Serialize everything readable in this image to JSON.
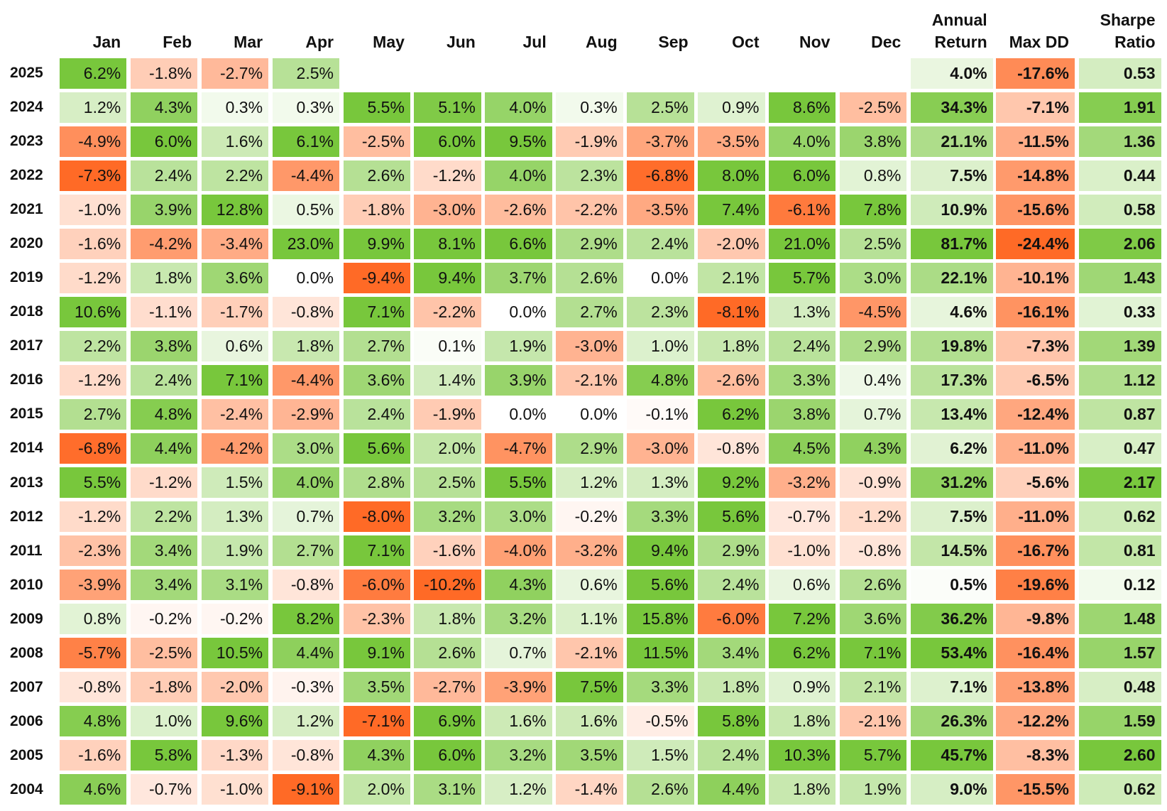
{
  "table": {
    "columns": [
      "Jan",
      "Feb",
      "Mar",
      "Apr",
      "May",
      "Jun",
      "Jul",
      "Aug",
      "Sep",
      "Oct",
      "Nov",
      "Dec",
      "Annual Return",
      "Max DD",
      "Sharpe Ratio"
    ],
    "colors": {
      "positive": "#78c73c",
      "negative": "#ff6a26"
    },
    "rows": [
      {
        "label": "2025",
        "cells": [
          "6.2%",
          "-1.8%",
          "-2.7%",
          "2.5%",
          null,
          null,
          null,
          null,
          null,
          null,
          null,
          null,
          "4.0%",
          "-17.6%",
          "0.53"
        ]
      },
      {
        "label": "2024",
        "cells": [
          "1.2%",
          "4.3%",
          "0.3%",
          "0.3%",
          "5.5%",
          "5.1%",
          "4.0%",
          "0.3%",
          "2.5%",
          "0.9%",
          "8.6%",
          "-2.5%",
          "34.3%",
          "-7.1%",
          "1.91"
        ]
      },
      {
        "label": "2023",
        "cells": [
          "-4.9%",
          "6.0%",
          "1.6%",
          "6.1%",
          "-2.5%",
          "6.0%",
          "9.5%",
          "-1.9%",
          "-3.7%",
          "-3.5%",
          "4.0%",
          "3.8%",
          "21.1%",
          "-11.5%",
          "1.36"
        ]
      },
      {
        "label": "2022",
        "cells": [
          "-7.3%",
          "2.4%",
          "2.2%",
          "-4.4%",
          "2.6%",
          "-1.2%",
          "4.0%",
          "2.3%",
          "-6.8%",
          "8.0%",
          "6.0%",
          "0.8%",
          "7.5%",
          "-14.8%",
          "0.44"
        ]
      },
      {
        "label": "2021",
        "cells": [
          "-1.0%",
          "3.9%",
          "12.8%",
          "0.5%",
          "-1.8%",
          "-3.0%",
          "-2.6%",
          "-2.2%",
          "-3.5%",
          "7.4%",
          "-6.1%",
          "7.8%",
          "10.9%",
          "-15.6%",
          "0.58"
        ]
      },
      {
        "label": "2020",
        "cells": [
          "-1.6%",
          "-4.2%",
          "-3.4%",
          "23.0%",
          "9.9%",
          "8.1%",
          "6.6%",
          "2.9%",
          "2.4%",
          "-2.0%",
          "21.0%",
          "2.5%",
          "81.7%",
          "-24.4%",
          "2.06"
        ]
      },
      {
        "label": "2019",
        "cells": [
          "-1.2%",
          "1.8%",
          "3.6%",
          "0.0%",
          "-9.4%",
          "9.4%",
          "3.7%",
          "2.6%",
          "0.0%",
          "2.1%",
          "5.7%",
          "3.0%",
          "22.1%",
          "-10.1%",
          "1.43"
        ]
      },
      {
        "label": "2018",
        "cells": [
          "10.6%",
          "-1.1%",
          "-1.7%",
          "-0.8%",
          "7.1%",
          "-2.2%",
          "0.0%",
          "2.7%",
          "2.3%",
          "-8.1%",
          "1.3%",
          "-4.5%",
          "4.6%",
          "-16.1%",
          "0.33"
        ]
      },
      {
        "label": "2017",
        "cells": [
          "2.2%",
          "3.8%",
          "0.6%",
          "1.8%",
          "2.7%",
          "0.1%",
          "1.9%",
          "-3.0%",
          "1.0%",
          "1.8%",
          "2.4%",
          "2.9%",
          "19.8%",
          "-7.3%",
          "1.39"
        ]
      },
      {
        "label": "2016",
        "cells": [
          "-1.2%",
          "2.4%",
          "7.1%",
          "-4.4%",
          "3.6%",
          "1.4%",
          "3.9%",
          "-2.1%",
          "4.8%",
          "-2.6%",
          "3.3%",
          "0.4%",
          "17.3%",
          "-6.5%",
          "1.12"
        ]
      },
      {
        "label": "2015",
        "cells": [
          "2.7%",
          "4.8%",
          "-2.4%",
          "-2.9%",
          "2.4%",
          "-1.9%",
          "0.0%",
          "0.0%",
          "-0.1%",
          "6.2%",
          "3.8%",
          "0.7%",
          "13.4%",
          "-12.4%",
          "0.87"
        ]
      },
      {
        "label": "2014",
        "cells": [
          "-6.8%",
          "4.4%",
          "-4.2%",
          "3.0%",
          "5.6%",
          "2.0%",
          "-4.7%",
          "2.9%",
          "-3.0%",
          "-0.8%",
          "4.5%",
          "4.3%",
          "6.2%",
          "-11.0%",
          "0.47"
        ]
      },
      {
        "label": "2013",
        "cells": [
          "5.5%",
          "-1.2%",
          "1.5%",
          "4.0%",
          "2.8%",
          "2.5%",
          "5.5%",
          "1.2%",
          "1.3%",
          "9.2%",
          "-3.2%",
          "-0.9%",
          "31.2%",
          "-5.6%",
          "2.17"
        ]
      },
      {
        "label": "2012",
        "cells": [
          "-1.2%",
          "2.2%",
          "1.3%",
          "0.7%",
          "-8.0%",
          "3.2%",
          "3.0%",
          "-0.2%",
          "3.3%",
          "5.6%",
          "-0.7%",
          "-1.2%",
          "7.5%",
          "-11.0%",
          "0.62"
        ]
      },
      {
        "label": "2011",
        "cells": [
          "-2.3%",
          "3.4%",
          "1.9%",
          "2.7%",
          "7.1%",
          "-1.6%",
          "-4.0%",
          "-3.2%",
          "9.4%",
          "2.9%",
          "-1.0%",
          "-0.8%",
          "14.5%",
          "-16.7%",
          "0.81"
        ]
      },
      {
        "label": "2010",
        "cells": [
          "-3.9%",
          "3.4%",
          "3.1%",
          "-0.8%",
          "-6.0%",
          "-10.2%",
          "4.3%",
          "0.6%",
          "5.6%",
          "2.4%",
          "0.6%",
          "2.6%",
          "0.5%",
          "-19.6%",
          "0.12"
        ]
      },
      {
        "label": "2009",
        "cells": [
          "0.8%",
          "-0.2%",
          "-0.2%",
          "8.2%",
          "-2.3%",
          "1.8%",
          "3.2%",
          "1.1%",
          "15.8%",
          "-6.0%",
          "7.2%",
          "3.6%",
          "36.2%",
          "-9.8%",
          "1.48"
        ]
      },
      {
        "label": "2008",
        "cells": [
          "-5.7%",
          "-2.5%",
          "10.5%",
          "4.4%",
          "9.1%",
          "2.6%",
          "0.7%",
          "-2.1%",
          "11.5%",
          "3.4%",
          "6.2%",
          "7.1%",
          "53.4%",
          "-16.4%",
          "1.57"
        ]
      },
      {
        "label": "2007",
        "cells": [
          "-0.8%",
          "-1.8%",
          "-2.0%",
          "-0.3%",
          "3.5%",
          "-2.7%",
          "-3.9%",
          "7.5%",
          "3.3%",
          "1.8%",
          "0.9%",
          "2.1%",
          "7.1%",
          "-13.8%",
          "0.48"
        ]
      },
      {
        "label": "2006",
        "cells": [
          "4.8%",
          "1.0%",
          "9.6%",
          "1.2%",
          "-7.1%",
          "6.9%",
          "1.6%",
          "1.6%",
          "-0.5%",
          "5.8%",
          "1.8%",
          "-2.1%",
          "26.3%",
          "-12.2%",
          "1.59"
        ]
      },
      {
        "label": "2005",
        "cells": [
          "-1.6%",
          "5.8%",
          "-1.3%",
          "-0.8%",
          "4.3%",
          "6.0%",
          "3.2%",
          "3.5%",
          "1.5%",
          "2.4%",
          "10.3%",
          "5.7%",
          "45.7%",
          "-8.3%",
          "2.60"
        ]
      },
      {
        "label": "2004",
        "cells": [
          "4.6%",
          "-0.7%",
          "-1.0%",
          "-9.1%",
          "2.0%",
          "3.1%",
          "1.2%",
          "-1.4%",
          "2.6%",
          "4.4%",
          "1.8%",
          "1.9%",
          "9.0%",
          "-15.5%",
          "0.62"
        ]
      }
    ]
  }
}
